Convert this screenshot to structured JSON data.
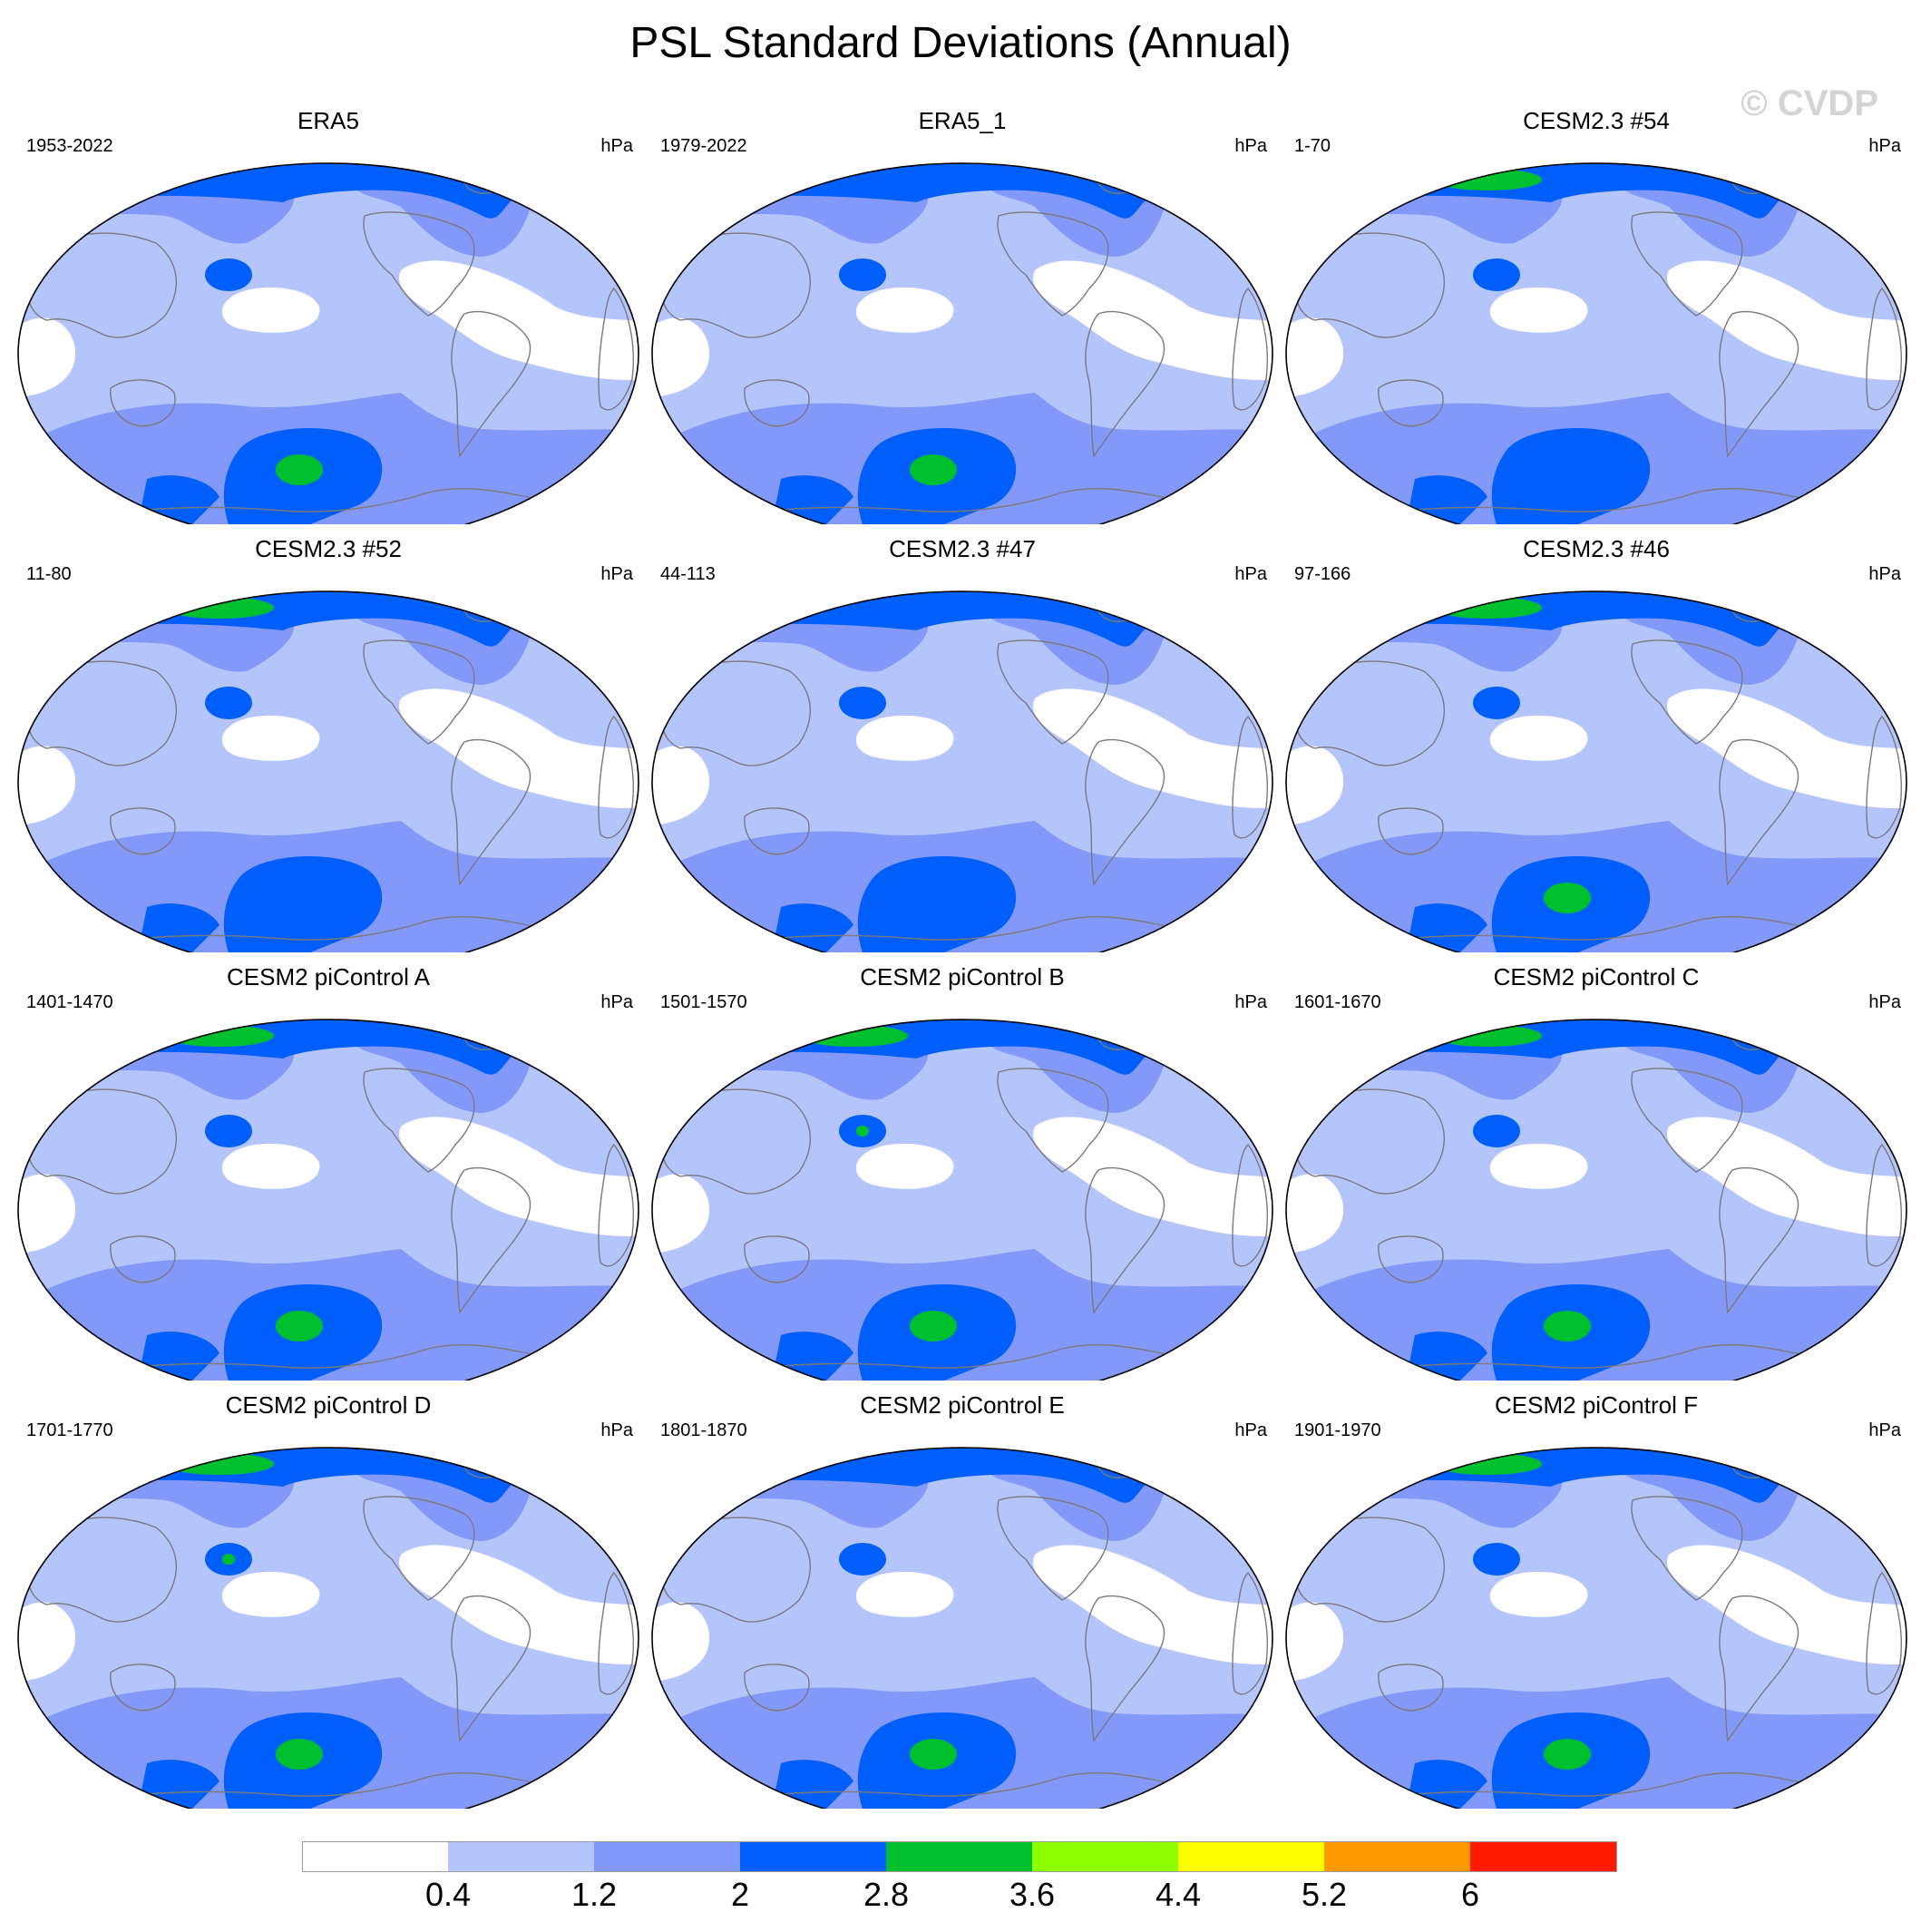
{
  "title": "PSL Standard Deviations (Annual)",
  "watermark": "© CVDP",
  "unit": "hPa",
  "colors": [
    "#ffffff",
    "#b4c5fb",
    "#8399fa",
    "#005ffa",
    "#00c030",
    "#8fff00",
    "#ffff00",
    "#ff9900",
    "#ff1a00"
  ],
  "levels": [
    "0.4",
    "1.2",
    "2",
    "2.8",
    "3.6",
    "4.4",
    "5.2",
    "6"
  ],
  "panels": [
    {
      "title": "ERA5",
      "period": "1953-2022",
      "nh_green": false,
      "pacific_core": false,
      "sh_green": true
    },
    {
      "title": "ERA5_1",
      "period": "1979-2022",
      "nh_green": false,
      "pacific_core": false,
      "sh_green": true
    },
    {
      "title": "CESM2.3 #54",
      "period": "1-70",
      "nh_green": true,
      "pacific_core": false,
      "sh_green": false
    },
    {
      "title": "CESM2.3 #52",
      "period": "11-80",
      "nh_green": true,
      "pacific_core": false,
      "sh_green": false
    },
    {
      "title": "CESM2.3 #47",
      "period": "44-113",
      "nh_green": false,
      "pacific_core": false,
      "sh_green": false
    },
    {
      "title": "CESM2.3 #46",
      "period": "97-166",
      "nh_green": true,
      "pacific_core": false,
      "sh_green": true
    },
    {
      "title": "CESM2 piControl A",
      "period": "1401-1470",
      "nh_green": true,
      "pacific_core": false,
      "sh_green": true
    },
    {
      "title": "CESM2 piControl B",
      "period": "1501-1570",
      "nh_green": true,
      "pacific_core": true,
      "sh_green": true
    },
    {
      "title": "CESM2 piControl C",
      "period": "1601-1670",
      "nh_green": true,
      "pacific_core": false,
      "sh_green": true
    },
    {
      "title": "CESM2 piControl D",
      "period": "1701-1770",
      "nh_green": true,
      "pacific_core": true,
      "sh_green": true
    },
    {
      "title": "CESM2 piControl E",
      "period": "1801-1870",
      "nh_green": false,
      "pacific_core": false,
      "sh_green": true
    },
    {
      "title": "CESM2 piControl F",
      "period": "1901-1970",
      "nh_green": true,
      "pacific_core": false,
      "sh_green": true
    }
  ]
}
